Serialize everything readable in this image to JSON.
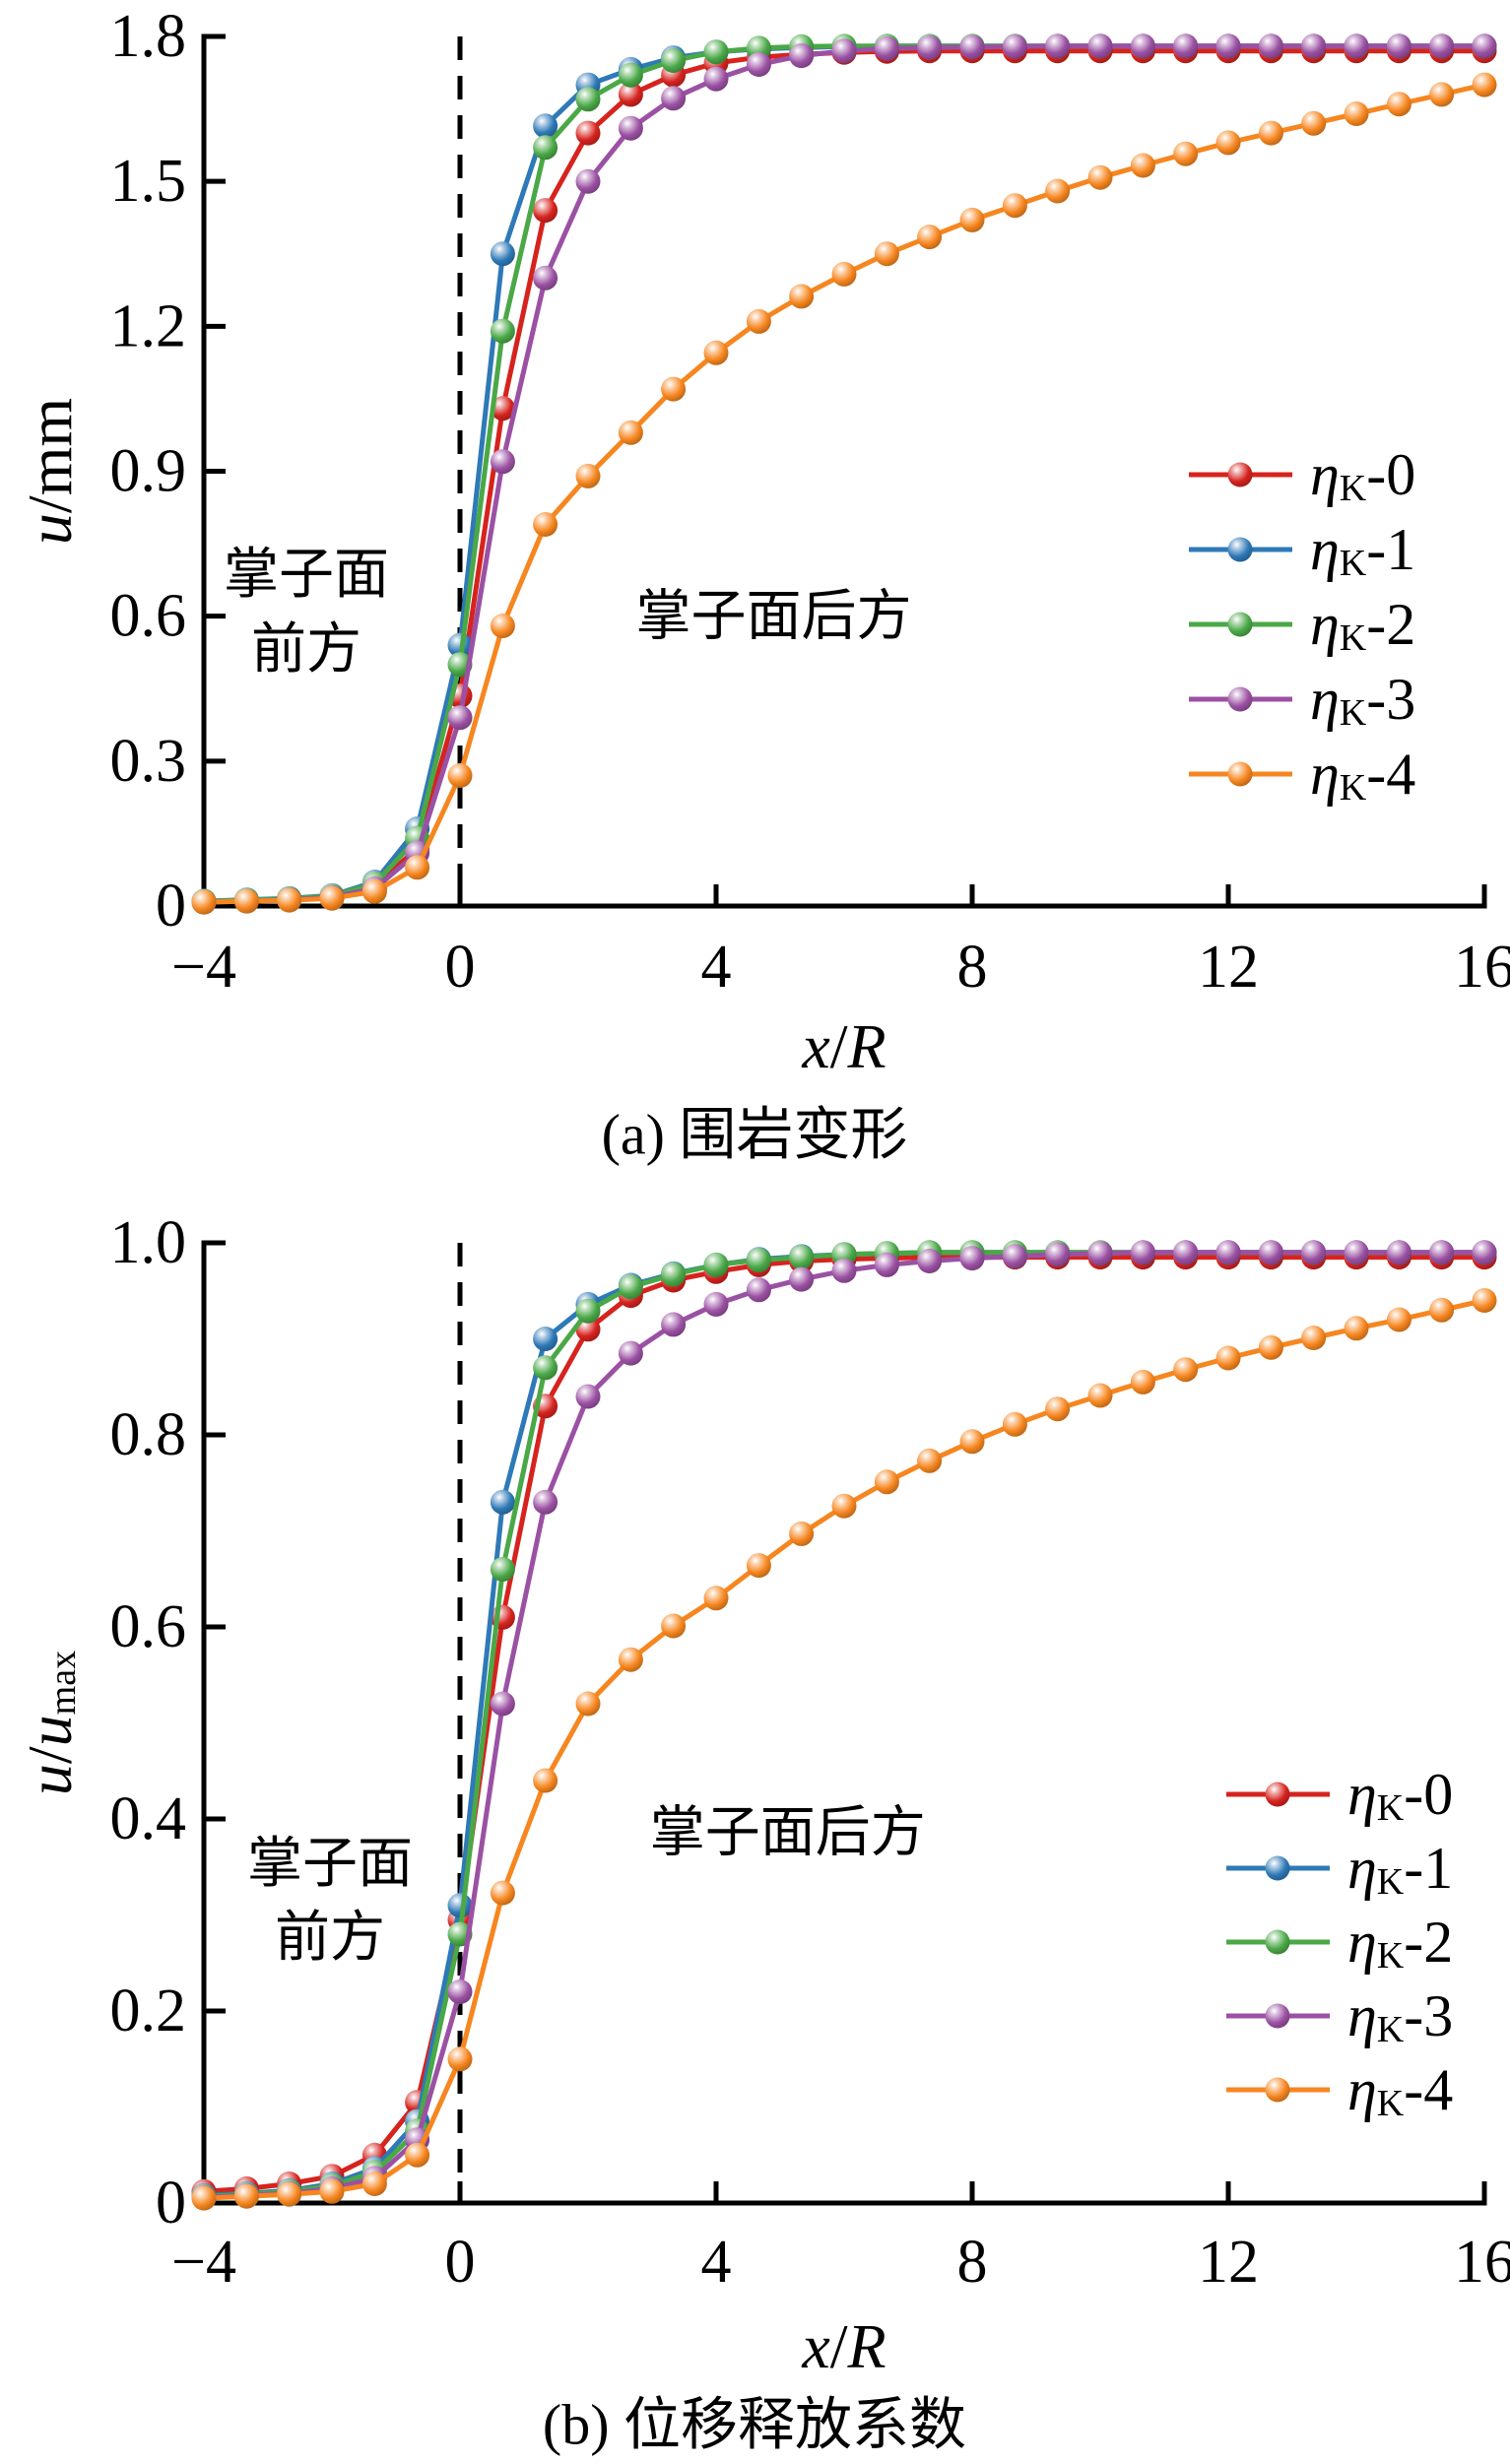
{
  "figure": {
    "background": "#ffffff",
    "axis_color": "#000000",
    "face_line_color": "#000000"
  },
  "chart_data": [
    {
      "id": "a",
      "type": "line",
      "title": "(a) 围岩变形",
      "xlabel_parts": [
        {
          "t": "x",
          "italic": true
        },
        {
          "t": "/"
        },
        {
          "t": "R",
          "italic": true
        }
      ],
      "ylabel_parts": [
        {
          "t": "u",
          "italic": true
        },
        {
          "t": "/mm"
        }
      ],
      "xlim": [
        -4,
        16
      ],
      "ylim": [
        0,
        1.8
      ],
      "x_ticks": {
        "pos": [
          -4,
          0,
          4,
          8,
          12,
          16
        ],
        "labels": [
          "−4",
          "0",
          "4",
          "8",
          "12",
          "16"
        ]
      },
      "y_ticks": {
        "pos": [
          0,
          0.3,
          0.6,
          0.9,
          1.2,
          1.5,
          1.8
        ],
        "labels": [
          "0",
          "0.3",
          "0.6",
          "0.9",
          "1.2",
          "1.5",
          "1.8"
        ]
      },
      "face_line_x": 0,
      "grid": false,
      "legend_position": "right-middle",
      "annotations": [
        {
          "name": "front-of-face",
          "lines": [
            "掌子面",
            "前方"
          ],
          "x": -2.4,
          "y": [
            0.685,
            0.53
          ]
        },
        {
          "name": "behind-face",
          "lines": [
            "掌子面后方"
          ],
          "x": 4.9,
          "y": [
            0.598
          ]
        }
      ],
      "x": [
        -4,
        -3.333,
        -2.667,
        -2,
        -1.333,
        -0.667,
        0,
        0.667,
        1.333,
        2,
        2.667,
        3.333,
        4,
        4.667,
        5.333,
        6,
        6.667,
        7.333,
        8,
        8.667,
        9.333,
        10,
        10.667,
        11.333,
        12,
        12.667,
        13.333,
        14,
        14.667,
        15.333,
        16
      ],
      "series": [
        {
          "name": "ηK-0",
          "label": {
            "var": "η",
            "sub": "K",
            "rest": "-0"
          },
          "color": "#D6231E",
          "values": [
            0.01,
            0.012,
            0.015,
            0.02,
            0.04,
            0.12,
            0.435,
            1.03,
            1.44,
            1.6,
            1.68,
            1.72,
            1.745,
            1.757,
            1.763,
            1.767,
            1.769,
            1.77,
            1.77,
            1.77,
            1.77,
            1.77,
            1.77,
            1.77,
            1.77,
            1.77,
            1.77,
            1.77,
            1.77,
            1.77,
            1.77
          ]
        },
        {
          "name": "ηK-1",
          "label": {
            "var": "η",
            "sub": "K",
            "rest": "-1"
          },
          "color": "#2E79B7",
          "values": [
            0.01,
            0.013,
            0.016,
            0.022,
            0.05,
            0.16,
            0.54,
            1.35,
            1.615,
            1.7,
            1.732,
            1.756,
            1.768,
            1.774,
            1.777,
            1.779,
            1.78,
            1.78,
            1.78,
            1.78,
            1.78,
            1.78,
            1.78,
            1.78,
            1.78,
            1.78,
            1.78,
            1.78,
            1.78,
            1.78,
            1.78
          ]
        },
        {
          "name": "ηK-2",
          "label": {
            "var": "η",
            "sub": "K",
            "rest": "-2"
          },
          "color": "#4AA847",
          "values": [
            0.01,
            0.012,
            0.015,
            0.021,
            0.046,
            0.14,
            0.5,
            1.19,
            1.57,
            1.67,
            1.72,
            1.75,
            1.768,
            1.776,
            1.779,
            1.78,
            1.78,
            1.78,
            1.78,
            1.78,
            1.78,
            1.78,
            1.78,
            1.78,
            1.78,
            1.78,
            1.78,
            1.78,
            1.78,
            1.78,
            1.78
          ]
        },
        {
          "name": "ηK-3",
          "label": {
            "var": "η",
            "sub": "K",
            "rest": "-3"
          },
          "color": "#9B51A3",
          "values": [
            0.008,
            0.01,
            0.013,
            0.018,
            0.036,
            0.11,
            0.39,
            0.92,
            1.3,
            1.5,
            1.61,
            1.672,
            1.712,
            1.742,
            1.76,
            1.77,
            1.775,
            1.777,
            1.778,
            1.779,
            1.78,
            1.78,
            1.78,
            1.78,
            1.78,
            1.78,
            1.78,
            1.78,
            1.78,
            1.78,
            1.78
          ]
        },
        {
          "name": "ηK-4",
          "label": {
            "var": "η",
            "sub": "K",
            "rest": "-4"
          },
          "color": "#F6861F",
          "values": [
            0.008,
            0.01,
            0.012,
            0.016,
            0.03,
            0.08,
            0.27,
            0.58,
            0.79,
            0.89,
            0.98,
            1.07,
            1.145,
            1.21,
            1.262,
            1.308,
            1.35,
            1.385,
            1.42,
            1.45,
            1.48,
            1.508,
            1.533,
            1.557,
            1.58,
            1.6,
            1.62,
            1.64,
            1.66,
            1.68,
            1.7
          ]
        }
      ]
    },
    {
      "id": "b",
      "type": "line",
      "title": "(b) 位移释放系数",
      "xlabel_parts": [
        {
          "t": "x",
          "italic": true
        },
        {
          "t": "/"
        },
        {
          "t": "R",
          "italic": true
        }
      ],
      "ylabel_parts": [
        {
          "t": "u",
          "italic": true
        },
        {
          "t": "/"
        },
        {
          "t": "u",
          "italic": true
        },
        {
          "t": "max",
          "sub": true
        }
      ],
      "xlim": [
        -4,
        16
      ],
      "ylim": [
        0,
        1.0
      ],
      "x_ticks": {
        "pos": [
          -4,
          0,
          4,
          8,
          12,
          16
        ],
        "labels": [
          "−4",
          "0",
          "4",
          "8",
          "12",
          "16"
        ]
      },
      "y_ticks": {
        "pos": [
          0,
          0.2,
          0.4,
          0.6,
          0.8,
          1.0
        ],
        "labels": [
          "0",
          "0.2",
          "0.4",
          "0.6",
          "0.8",
          "1.0"
        ]
      },
      "face_line_x": 0,
      "grid": false,
      "legend_position": "right-middle",
      "annotations": [
        {
          "name": "front-of-face",
          "lines": [
            "掌子面",
            "前方"
          ],
          "x": -2.03,
          "y": [
            0.353,
            0.276
          ]
        },
        {
          "name": "behind-face",
          "lines": [
            "掌子面后方"
          ],
          "x": 5.12,
          "y": [
            0.385
          ]
        }
      ],
      "x": [
        -4,
        -3.333,
        -2.667,
        -2,
        -1.333,
        -0.667,
        0,
        0.667,
        1.333,
        2,
        2.667,
        3.333,
        4,
        4.667,
        5.333,
        6,
        6.667,
        7.333,
        8,
        8.667,
        9.333,
        10,
        10.667,
        11.333,
        12,
        12.667,
        13.333,
        14,
        14.667,
        15.333,
        16
      ],
      "series": [
        {
          "name": "ηK-0",
          "label": {
            "var": "η",
            "sub": "K",
            "rest": "-0"
          },
          "color": "#D6231E",
          "values": [
            0.012,
            0.015,
            0.02,
            0.028,
            0.05,
            0.105,
            0.295,
            0.61,
            0.83,
            0.91,
            0.945,
            0.961,
            0.97,
            0.977,
            0.981,
            0.983,
            0.984,
            0.985,
            0.985,
            0.985,
            0.985,
            0.985,
            0.985,
            0.985,
            0.985,
            0.985,
            0.985,
            0.985,
            0.985,
            0.985,
            0.985
          ]
        },
        {
          "name": "ηK-1",
          "label": {
            "var": "η",
            "sub": "K",
            "rest": "-1"
          },
          "color": "#2E79B7",
          "values": [
            0.008,
            0.01,
            0.013,
            0.02,
            0.036,
            0.085,
            0.31,
            0.73,
            0.9,
            0.936,
            0.956,
            0.968,
            0.977,
            0.983,
            0.986,
            0.988,
            0.989,
            0.99,
            0.99,
            0.99,
            0.99,
            0.99,
            0.99,
            0.99,
            0.99,
            0.99,
            0.99,
            0.99,
            0.99,
            0.99,
            0.99
          ]
        },
        {
          "name": "ηK-2",
          "label": {
            "var": "η",
            "sub": "K",
            "rest": "-2"
          },
          "color": "#4AA847",
          "values": [
            0.007,
            0.009,
            0.012,
            0.018,
            0.032,
            0.075,
            0.28,
            0.66,
            0.87,
            0.929,
            0.954,
            0.967,
            0.977,
            0.982,
            0.985,
            0.988,
            0.989,
            0.99,
            0.99,
            0.99,
            0.99,
            0.99,
            0.99,
            0.99,
            0.99,
            0.99,
            0.99,
            0.99,
            0.99,
            0.99,
            0.99
          ]
        },
        {
          "name": "ηK-3",
          "label": {
            "var": "η",
            "sub": "K",
            "rest": "-3"
          },
          "color": "#9B51A3",
          "values": [
            0.006,
            0.008,
            0.01,
            0.015,
            0.026,
            0.066,
            0.22,
            0.52,
            0.73,
            0.84,
            0.885,
            0.915,
            0.936,
            0.951,
            0.962,
            0.971,
            0.977,
            0.981,
            0.984,
            0.986,
            0.988,
            0.989,
            0.99,
            0.99,
            0.99,
            0.99,
            0.99,
            0.99,
            0.99,
            0.99,
            0.99
          ]
        },
        {
          "name": "ηK-4",
          "label": {
            "var": "η",
            "sub": "K",
            "rest": "-4"
          },
          "color": "#F6861F",
          "values": [
            0.005,
            0.007,
            0.009,
            0.012,
            0.02,
            0.05,
            0.15,
            0.323,
            0.44,
            0.52,
            0.566,
            0.601,
            0.63,
            0.664,
            0.697,
            0.726,
            0.751,
            0.773,
            0.793,
            0.811,
            0.827,
            0.841,
            0.855,
            0.868,
            0.88,
            0.891,
            0.901,
            0.911,
            0.92,
            0.93,
            0.94
          ]
        }
      ]
    }
  ]
}
